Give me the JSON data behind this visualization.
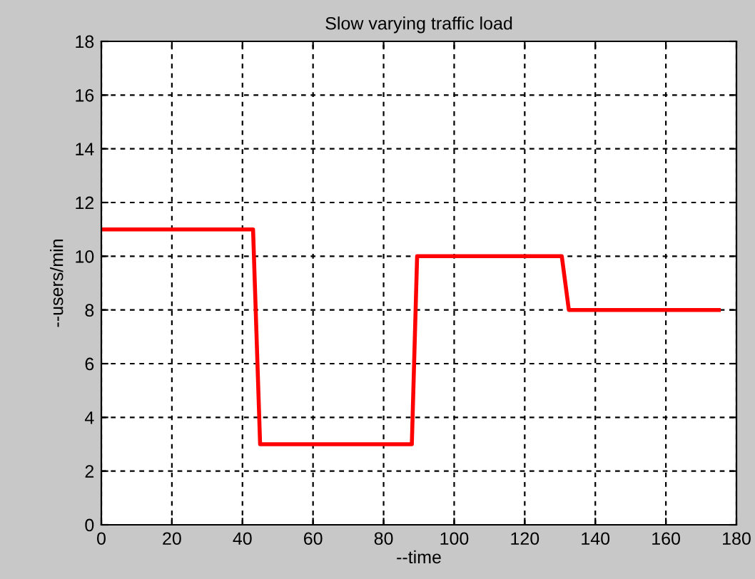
{
  "chart_data": {
    "type": "line",
    "title": "Slow varying traffic load",
    "xlabel": "--time",
    "ylabel": "--users/min",
    "x": [
      0,
      43,
      45,
      88,
      89.5,
      130.5,
      132.5,
      175
    ],
    "series": [
      {
        "color": "#ff0000",
        "values": [
          11,
          11,
          3,
          3,
          10,
          10,
          8,
          8
        ]
      }
    ],
    "xlim": [
      0,
      180
    ],
    "xticks": [
      0,
      20,
      40,
      60,
      80,
      100,
      120,
      140,
      160,
      180
    ],
    "ylim": [
      0,
      18
    ],
    "yticks": [
      0,
      2,
      4,
      6,
      8,
      10,
      12,
      14,
      16,
      18
    ],
    "grid": true,
    "line_style": "solid",
    "marker": "none",
    "legend": false
  }
}
